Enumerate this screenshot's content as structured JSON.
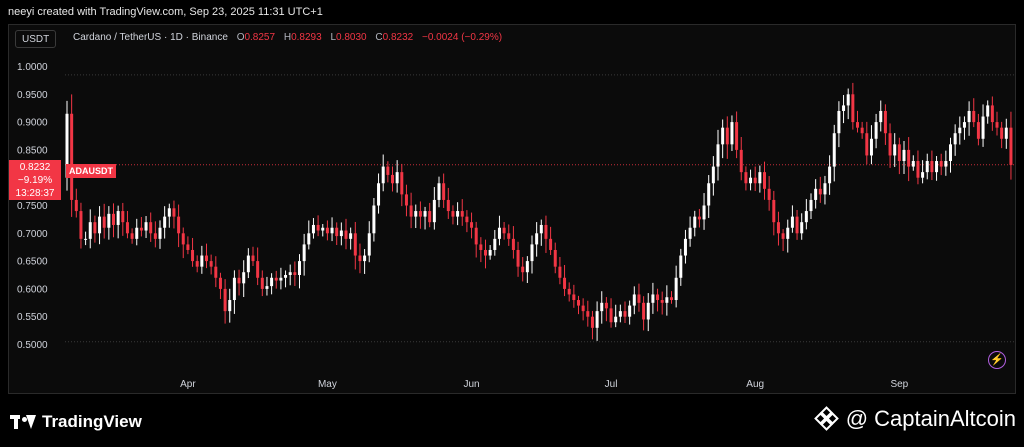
{
  "header": {
    "creator_line": "neeyi created with TradingView.com, Sep 23, 2025 11:31 UTC+1"
  },
  "toolbar": {
    "symbol_button": "USDT"
  },
  "legend": {
    "name": "Cardano / TetherUS · 1D · Binance",
    "open_label": "O",
    "open": "0.8257",
    "high_label": "H",
    "high": "0.8293",
    "low_label": "L",
    "low": "0.8030",
    "close_label": "C",
    "close": "0.8232",
    "change": "−0.0024 (−0.29%)"
  },
  "price_tag": {
    "price": "0.8232",
    "change_pct": "−9.19%",
    "countdown": "13:28:37",
    "symbol": "ADAUSDT"
  },
  "branding": {
    "left_logo": "TradingView",
    "right_logo": "@ CaptainAltcoin"
  },
  "icons": {
    "bolt": "lightning-icon"
  },
  "colors": {
    "up": "#ffffff",
    "down": "#f23645",
    "background": "#0b0b0b"
  },
  "chart_data": {
    "type": "candlestick",
    "title": "Cardano / TetherUS · 1D · Binance",
    "y_ticks": [
      1.0,
      0.95,
      0.9,
      0.85,
      0.8,
      0.75,
      0.7,
      0.65,
      0.6,
      0.55,
      0.5
    ],
    "y_tick_labels": [
      "1.0000",
      "0.9500",
      "0.9000",
      "0.8500",
      "0.8000",
      "0.7500",
      "0.7000",
      "0.6500",
      "0.6000",
      "0.5500",
      "0.5000"
    ],
    "x_tick_labels": [
      "Apr",
      "May",
      "Jun",
      "Jul",
      "Aug",
      "Sep"
    ],
    "x_ticks_day": [
      26,
      56,
      87,
      117,
      148,
      179
    ],
    "ylim": [
      0.48,
      1.02
    ],
    "start_date": "2025-03-06",
    "reference_lines": {
      "top": 0.985,
      "bottom": 0.505,
      "last_price": 0.8232
    },
    "grid": false,
    "last_price": 0.8232,
    "closes": [
      0.915,
      0.76,
      0.74,
      0.69,
      0.69,
      0.72,
      0.7,
      0.73,
      0.71,
      0.735,
      0.715,
      0.74,
      0.72,
      0.7,
      0.69,
      0.71,
      0.705,
      0.72,
      0.7,
      0.69,
      0.71,
      0.73,
      0.745,
      0.73,
      0.7,
      0.68,
      0.67,
      0.65,
      0.64,
      0.66,
      0.65,
      0.64,
      0.62,
      0.6,
      0.56,
      0.58,
      0.62,
      0.61,
      0.63,
      0.66,
      0.65,
      0.62,
      0.6,
      0.605,
      0.62,
      0.615,
      0.62,
      0.625,
      0.63,
      0.625,
      0.65,
      0.68,
      0.7,
      0.715,
      0.705,
      0.71,
      0.7,
      0.71,
      0.695,
      0.705,
      0.69,
      0.7,
      0.66,
      0.65,
      0.66,
      0.7,
      0.75,
      0.79,
      0.82,
      0.805,
      0.79,
      0.81,
      0.77,
      0.75,
      0.73,
      0.74,
      0.73,
      0.74,
      0.72,
      0.76,
      0.79,
      0.76,
      0.74,
      0.73,
      0.74,
      0.73,
      0.72,
      0.71,
      0.68,
      0.67,
      0.66,
      0.67,
      0.69,
      0.71,
      0.7,
      0.69,
      0.67,
      0.64,
      0.63,
      0.65,
      0.68,
      0.7,
      0.715,
      0.69,
      0.67,
      0.64,
      0.62,
      0.6,
      0.59,
      0.58,
      0.57,
      0.56,
      0.55,
      0.53,
      0.56,
      0.575,
      0.565,
      0.54,
      0.55,
      0.56,
      0.55,
      0.57,
      0.59,
      0.575,
      0.545,
      0.575,
      0.59,
      0.58,
      0.575,
      0.585,
      0.58,
      0.62,
      0.66,
      0.69,
      0.71,
      0.73,
      0.725,
      0.75,
      0.79,
      0.82,
      0.86,
      0.89,
      0.86,
      0.9,
      0.85,
      0.81,
      0.79,
      0.8,
      0.79,
      0.81,
      0.78,
      0.76,
      0.72,
      0.7,
      0.69,
      0.71,
      0.73,
      0.7,
      0.72,
      0.74,
      0.76,
      0.78,
      0.77,
      0.79,
      0.82,
      0.88,
      0.92,
      0.93,
      0.95,
      0.9,
      0.89,
      0.88,
      0.84,
      0.87,
      0.9,
      0.92,
      0.88,
      0.84,
      0.86,
      0.83,
      0.85,
      0.82,
      0.83,
      0.8,
      0.81,
      0.83,
      0.81,
      0.83,
      0.82,
      0.83,
      0.86,
      0.88,
      0.89,
      0.9,
      0.92,
      0.9,
      0.87,
      0.91,
      0.93,
      0.9,
      0.89,
      0.87,
      0.89,
      0.823
    ]
  }
}
